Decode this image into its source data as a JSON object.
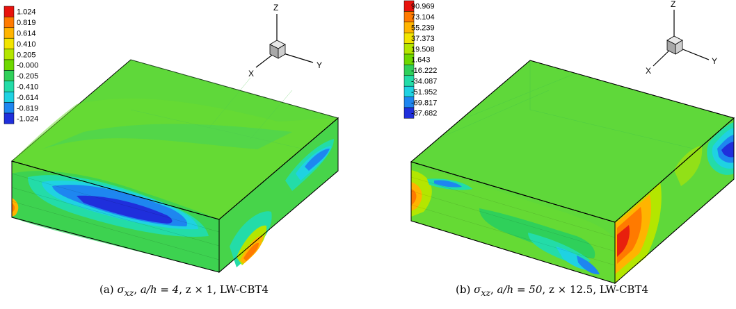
{
  "panels": [
    {
      "id": "a",
      "legend": {
        "labels": [
          "1.024",
          "0.819",
          "0.614",
          "0.410",
          "0.205",
          "-0.000",
          "-0.205",
          "-0.410",
          "-0.614",
          "-0.819",
          "-1.024"
        ],
        "colors": [
          "#e8120d",
          "#ff7a00",
          "#ffb400",
          "#f2e400",
          "#b4e600",
          "#6ed800",
          "#2fd05a",
          "#23dca8",
          "#1fd2e2",
          "#1e86f0",
          "#1f2fdc"
        ]
      },
      "axes": {
        "z": "Z",
        "x": "X",
        "y": "Y"
      },
      "caption": {
        "prefix": "(a)",
        "symbol": "σ",
        "subscript": "xz",
        "ratio": "a/h = 4",
        "scale": "z × 1",
        "theory": "LW-CBT4"
      }
    },
    {
      "id": "b",
      "legend": {
        "labels": [
          "90.969",
          "73.104",
          "55.239",
          "37.373",
          "19.508",
          "1.643",
          "-16.222",
          "-34.087",
          "-51.952",
          "-69.817",
          "-87.682"
        ],
        "colors": [
          "#e8120d",
          "#ff7a00",
          "#ffb400",
          "#f2e400",
          "#b4e600",
          "#6ed800",
          "#2fd05a",
          "#23dca8",
          "#1fd2e2",
          "#1e86f0",
          "#1f2fdc"
        ]
      },
      "axes": {
        "z": "Z",
        "x": "X",
        "y": "Y"
      },
      "caption": {
        "prefix": "(b)",
        "symbol": "σ",
        "subscript": "xz",
        "ratio": "a/h = 50",
        "scale": "z × 12.5",
        "theory": "LW-CBT4"
      }
    }
  ],
  "colors": {
    "green": "#5fd83a",
    "teal": "#27d9a0",
    "cyan": "#1fd2e2",
    "blue": "#1e86f0",
    "deep_blue": "#1f2fdc",
    "yellow": "#e2ea00",
    "orange": "#ff8a00",
    "red": "#e8200d"
  }
}
